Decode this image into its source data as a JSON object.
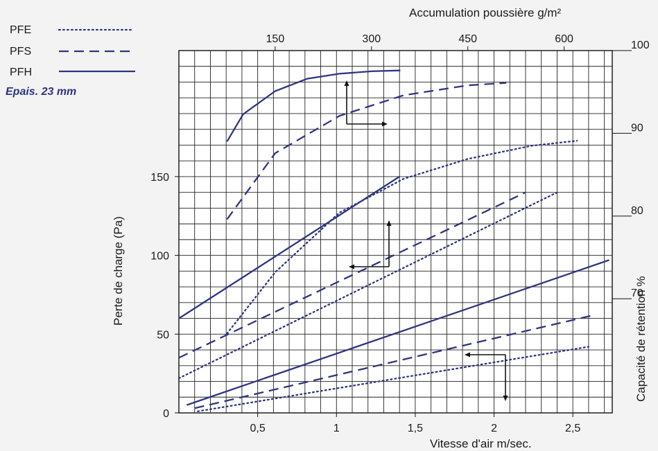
{
  "chart_data": {
    "type": "line",
    "legend": {
      "placement": "top-left",
      "entries": [
        {
          "label": "PFE",
          "style": "dotted"
        },
        {
          "label": "PFS",
          "style": "dashed"
        },
        {
          "label": "PFH",
          "style": "solid"
        }
      ],
      "note": "Epais. 23 mm"
    },
    "series_color": "#2d3580",
    "grid": true,
    "axes": {
      "bottom": {
        "label": "Vitesse d'air m/sec.",
        "range": [
          0,
          2.75
        ],
        "ticks": [
          0.5,
          1,
          1.5,
          2,
          2.5
        ],
        "tick_labels": [
          "0,5",
          "1",
          "1,5",
          "2",
          "2,5"
        ]
      },
      "left": {
        "label": "Perte de charge (Pa)",
        "range": [
          0,
          230
        ],
        "ticks": [
          0,
          50,
          100,
          150
        ],
        "tick_labels": [
          "0",
          "50",
          "100",
          "150"
        ]
      },
      "top": {
        "label": "Accumulation poussière g/m²",
        "range": [
          0,
          675
        ],
        "ticks": [
          150,
          300,
          450,
          600
        ],
        "tick_labels": [
          "150",
          "300",
          "450",
          "600"
        ]
      },
      "right": {
        "label": "Capacité de rétention %",
        "range": [
          56.2,
          100
        ],
        "ticks": [
          70,
          80,
          90,
          100
        ],
        "tick_labels": [
          "70",
          "80",
          "90",
          "100"
        ]
      }
    },
    "groups": [
      {
        "axes": [
          "top",
          "right"
        ],
        "series": [
          {
            "name": "PFH",
            "style": "solid",
            "points": [
              [
                75,
                89
              ],
              [
                100,
                92.3
              ],
              [
                150,
                95.1
              ],
              [
                200,
                96.6
              ],
              [
                250,
                97.2
              ],
              [
                300,
                97.5
              ],
              [
                345,
                97.6
              ]
            ]
          },
          {
            "name": "PFS",
            "style": "dashed",
            "points": [
              [
                75,
                79.6
              ],
              [
                150,
                87.6
              ],
              [
                250,
                92.1
              ],
              [
                350,
                94.6
              ],
              [
                450,
                95.8
              ],
              [
                510,
                96.1
              ]
            ]
          },
          {
            "name": "PFE",
            "style": "dotted",
            "points": [
              [
                75,
                65.8
              ],
              [
                150,
                73.2
              ],
              [
                250,
                80.4
              ],
              [
                350,
                84.5
              ],
              [
                450,
                86.9
              ],
              [
                550,
                88.5
              ],
              [
                620,
                89.1
              ]
            ]
          }
        ]
      },
      {
        "axes": [
          "bottom",
          "left"
        ],
        "series": [
          {
            "name": "PFH",
            "style": "solid",
            "points": [
              [
                0,
                60
              ],
              [
                1.4,
                150
              ]
            ]
          },
          {
            "name": "PFS",
            "style": "dashed",
            "points": [
              [
                0,
                35
              ],
              [
                2.2,
                140
              ]
            ]
          },
          {
            "name": "PFE",
            "style": "dotted",
            "points": [
              [
                0,
                22
              ],
              [
                2.4,
                140
              ]
            ]
          }
        ]
      },
      {
        "axes": [
          "bottom",
          "left"
        ],
        "series": [
          {
            "name": "PFH",
            "style": "solid",
            "points": [
              [
                0.05,
                5
              ],
              [
                2.73,
                97
              ]
            ]
          },
          {
            "name": "PFS",
            "style": "dashed",
            "points": [
              [
                0.1,
                3
              ],
              [
                2.63,
                62
              ]
            ]
          },
          {
            "name": "PFE",
            "style": "dotted",
            "points": [
              [
                0.12,
                1
              ],
              [
                2.6,
                42
              ]
            ]
          }
        ]
      }
    ]
  }
}
